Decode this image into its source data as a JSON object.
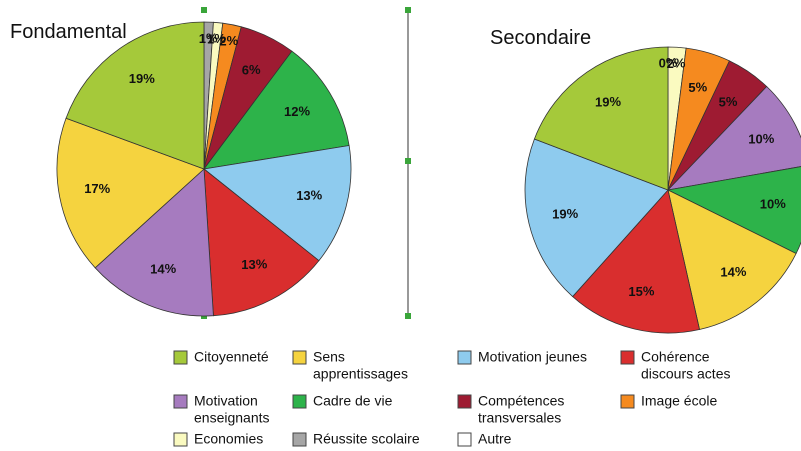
{
  "chart_data": [
    {
      "type": "pie",
      "title": "Fondamental",
      "values": [
        1,
        1,
        2,
        6,
        12,
        13,
        13,
        14,
        17,
        19
      ],
      "colors": [
        "#a6a6a6",
        "#fafac0",
        "#f58a1f",
        "#9e1b32",
        "#2db34a",
        "#8ecbee",
        "#d92e2e",
        "#a67bbf",
        "#f5d33f",
        "#a5c93a"
      ]
    },
    {
      "type": "pie",
      "title": "Secondaire",
      "values": [
        0,
        2,
        5,
        5,
        10,
        10,
        14,
        15,
        19,
        19
      ],
      "colors": [
        "#a6a6a6",
        "#fafac0",
        "#f58a1f",
        "#9e1b32",
        "#a67bbf",
        "#2db34a",
        "#f5d33f",
        "#d92e2e",
        "#8ecbee",
        "#a5c93a"
      ]
    }
  ],
  "legend": [
    {
      "name": [
        "Citoyenneté"
      ],
      "color": "#a5c93a"
    },
    {
      "name": [
        "Sens",
        "apprentissages"
      ],
      "color": "#f5d33f"
    },
    {
      "name": [
        "Motivation jeunes"
      ],
      "color": "#8ecbee"
    },
    {
      "name": [
        "Cohérence",
        "discours  actes"
      ],
      "color": "#d92e2e"
    },
    {
      "name": [
        "Motivation",
        "enseignants"
      ],
      "color": "#a67bbf"
    },
    {
      "name": [
        "Cadre de vie"
      ],
      "color": "#2db34a"
    },
    {
      "name": [
        "Compétences",
        "transversales"
      ],
      "color": "#9e1b32"
    },
    {
      "name": [
        "Image école"
      ],
      "color": "#f58a1f"
    },
    {
      "name": [
        "Economies"
      ],
      "color": "#fafac0"
    },
    {
      "name": [
        "Réussite  scolaire"
      ],
      "color": "#a6a6a6"
    },
    {
      "name": [
        "Autre"
      ],
      "color": "#ffffff"
    }
  ]
}
